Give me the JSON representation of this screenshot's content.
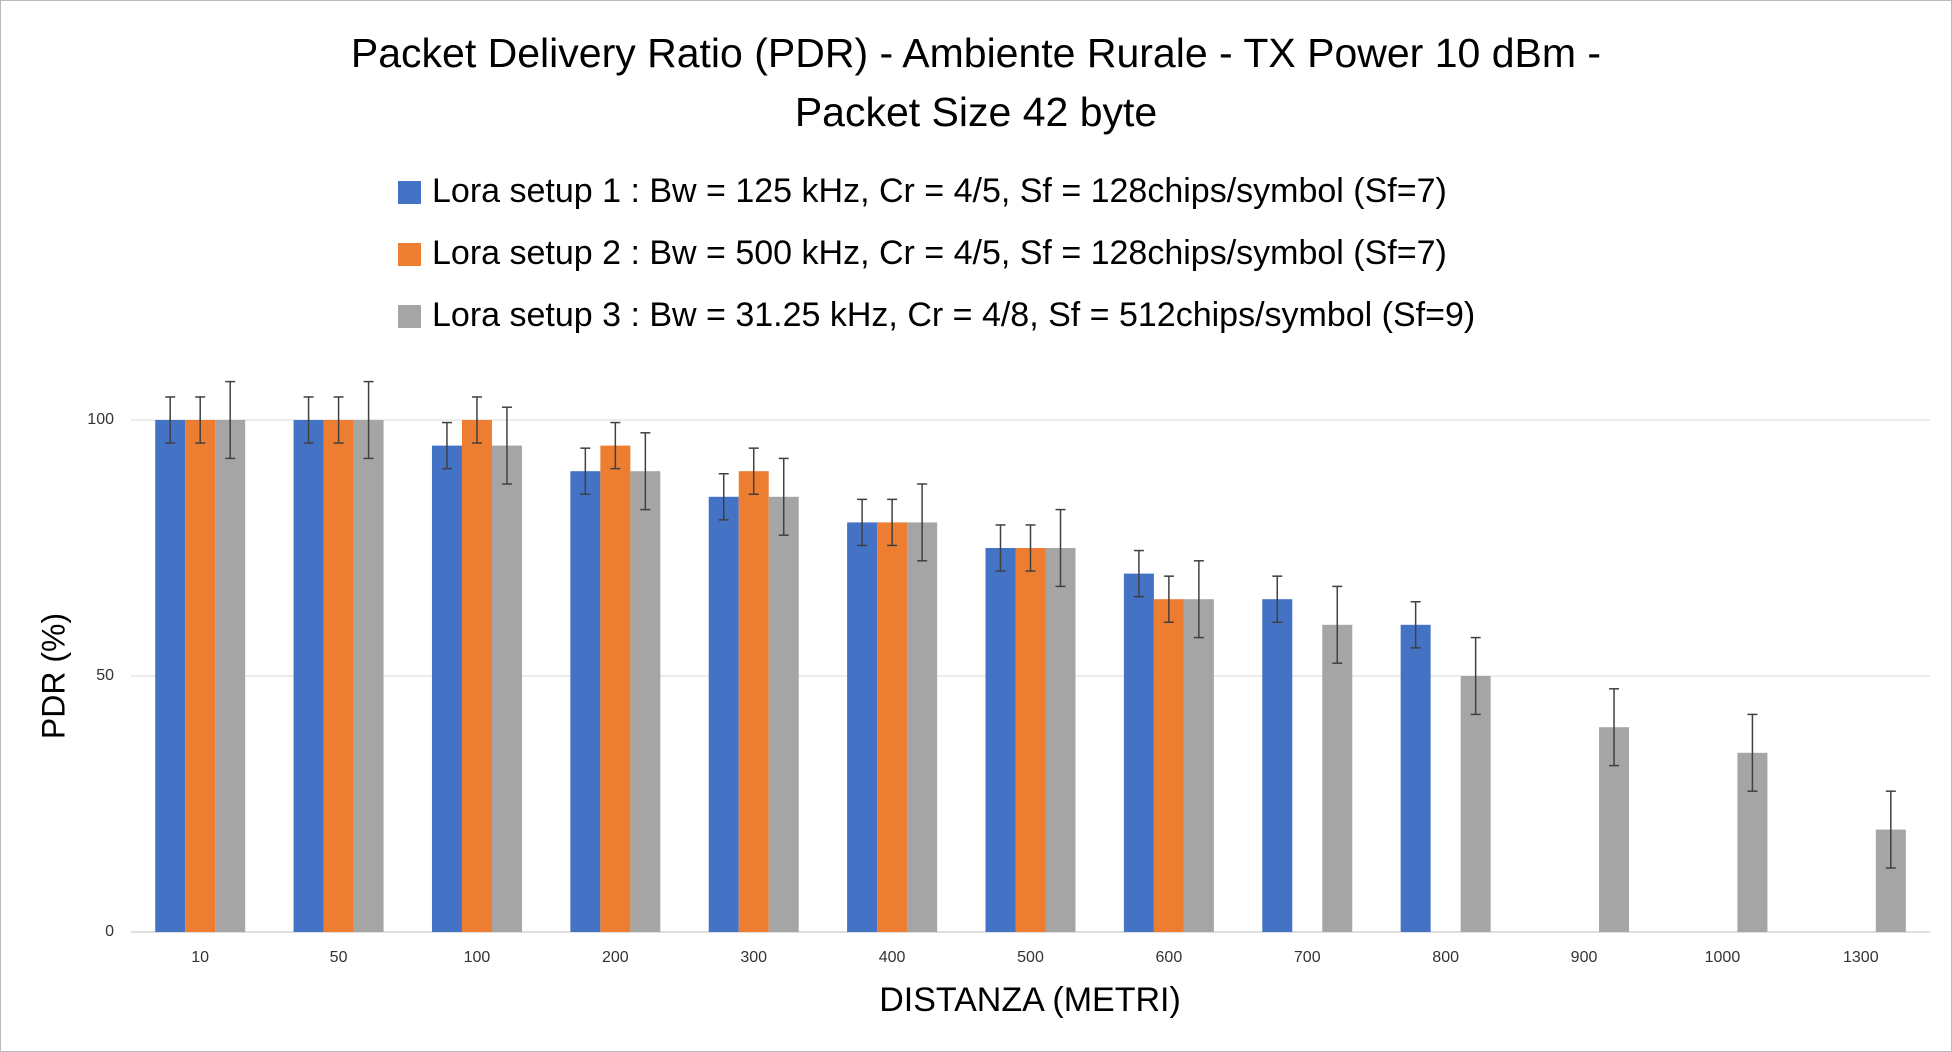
{
  "chart_data": {
    "type": "bar",
    "title": [
      "Packet Delivery Ratio (PDR) - Ambiente Rurale - TX Power 10 dBm -",
      "Packet Size 42 byte"
    ],
    "x_label": "DISTANZA (METRI)",
    "y_label": "PDR (%)",
    "categories": [
      "10",
      "50",
      "100",
      "200",
      "300",
      "400",
      "500",
      "600",
      "700",
      "800",
      "900",
      "1000",
      "1300"
    ],
    "series": [
      {
        "name": "Lora setup 1 : Bw = 125 kHz, Cr = 4/5, Sf = 128chips/symbol (Sf=7)",
        "color": "#4472c4",
        "values": [
          100,
          100,
          95,
          90,
          85,
          80,
          75,
          70,
          65,
          60,
          null,
          null,
          null
        ],
        "errors": [
          4.5,
          4.5,
          4.5,
          4.5,
          4.5,
          4.5,
          4.5,
          4.5,
          4.5,
          4.5,
          null,
          null,
          null
        ]
      },
      {
        "name": "Lora setup 2 : Bw = 500 kHz, Cr = 4/5, Sf = 128chips/symbol (Sf=7)",
        "color": "#ed7d31",
        "values": [
          100,
          100,
          100,
          95,
          90,
          80,
          75,
          65,
          null,
          null,
          null,
          null,
          null
        ],
        "errors": [
          4.5,
          4.5,
          4.5,
          4.5,
          4.5,
          4.5,
          4.5,
          4.5,
          null,
          null,
          null,
          null,
          null
        ]
      },
      {
        "name": "Lora setup 3 : Bw = 31.25 kHz, Cr = 4/8, Sf = 512chips/symbol (Sf=9)",
        "color": "#a5a5a5",
        "values": [
          100,
          100,
          95,
          90,
          85,
          80,
          75,
          65,
          60,
          50,
          40,
          35,
          20
        ],
        "errors": [
          7.5,
          7.5,
          7.5,
          7.5,
          7.5,
          7.5,
          7.5,
          7.5,
          7.5,
          7.5,
          7.5,
          7.5,
          7.5
        ]
      }
    ],
    "ylim": [
      0,
      100
    ],
    "yticks": [
      0,
      50,
      100
    ],
    "grid": true
  }
}
